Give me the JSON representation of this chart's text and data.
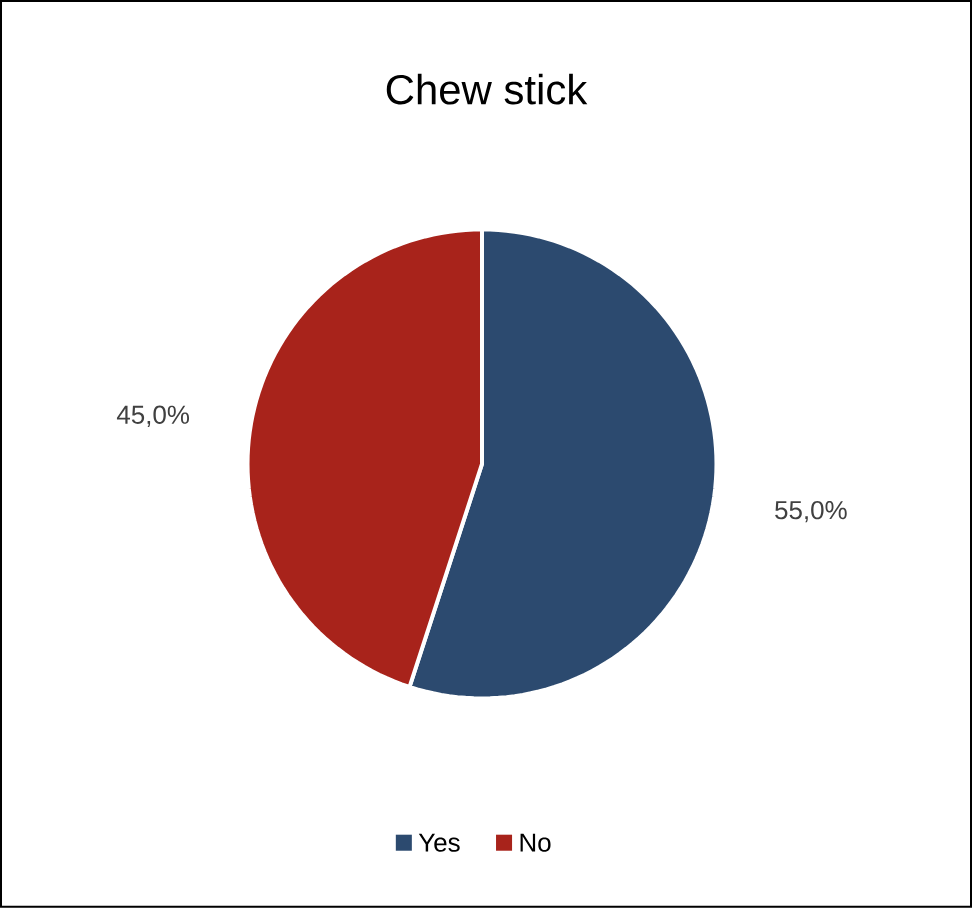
{
  "chart_data": {
    "type": "pie",
    "title": "Chew stick",
    "categories": [
      "Yes",
      "No"
    ],
    "values": [
      55.0,
      45.0
    ],
    "value_labels": [
      "55,0%",
      "45,0%"
    ],
    "colors": [
      "#2c4a6f",
      "#a8231b"
    ],
    "legend": "bottom"
  }
}
